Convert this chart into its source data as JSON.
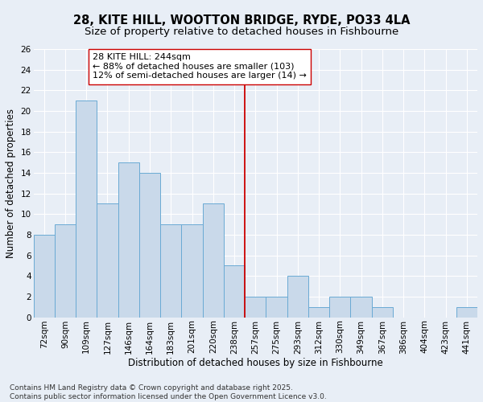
{
  "title": "28, KITE HILL, WOOTTON BRIDGE, RYDE, PO33 4LA",
  "subtitle": "Size of property relative to detached houses in Fishbourne",
  "xlabel": "Distribution of detached houses by size in Fishbourne",
  "ylabel": "Number of detached properties",
  "categories": [
    "72sqm",
    "90sqm",
    "109sqm",
    "127sqm",
    "146sqm",
    "164sqm",
    "183sqm",
    "201sqm",
    "220sqm",
    "238sqm",
    "257sqm",
    "275sqm",
    "293sqm",
    "312sqm",
    "330sqm",
    "349sqm",
    "367sqm",
    "386sqm",
    "404sqm",
    "423sqm",
    "441sqm"
  ],
  "values": [
    8,
    9,
    21,
    11,
    15,
    14,
    9,
    9,
    11,
    5,
    2,
    2,
    4,
    1,
    2,
    2,
    1,
    0,
    0,
    0,
    1
  ],
  "bar_color": "#c9d9ea",
  "bar_edge_color": "#6aaad4",
  "vline_x_idx": 9.5,
  "vline_color": "#cc0000",
  "annotation_text": "28 KITE HILL: 244sqm\n← 88% of detached houses are smaller (103)\n12% of semi-detached houses are larger (14) →",
  "annotation_box_facecolor": "#ffffff",
  "annotation_box_edgecolor": "#cc0000",
  "ylim": [
    0,
    26
  ],
  "yticks": [
    0,
    2,
    4,
    6,
    8,
    10,
    12,
    14,
    16,
    18,
    20,
    22,
    24,
    26
  ],
  "background_color": "#e8eef6",
  "grid_color": "#ffffff",
  "footer": "Contains HM Land Registry data © Crown copyright and database right 2025.\nContains public sector information licensed under the Open Government Licence v3.0.",
  "title_fontsize": 10.5,
  "subtitle_fontsize": 9.5,
  "xlabel_fontsize": 8.5,
  "ylabel_fontsize": 8.5,
  "tick_fontsize": 7.5,
  "annotation_fontsize": 8,
  "footer_fontsize": 6.5
}
